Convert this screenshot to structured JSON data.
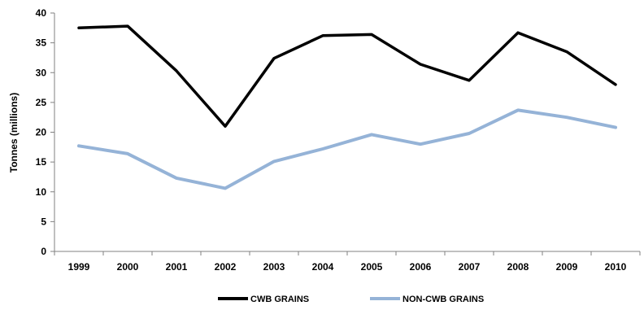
{
  "chart_data": {
    "type": "line",
    "title": "",
    "xlabel": "",
    "ylabel": "Tonnes (millions)",
    "categories": [
      "1999",
      "2000",
      "2001",
      "2002",
      "2003",
      "2004",
      "2005",
      "2006",
      "2007",
      "2008",
      "2009",
      "2010"
    ],
    "yticks": [
      "0",
      "5",
      "10",
      "15",
      "20",
      "25",
      "30",
      "35",
      "40"
    ],
    "ylim": [
      0,
      40
    ],
    "grid": false,
    "legend_position": "bottom",
    "series": [
      {
        "name": "CWB GRAINS",
        "color": "#000000",
        "values": [
          37.5,
          37.8,
          30.3,
          21.0,
          32.4,
          36.2,
          36.4,
          31.4,
          28.7,
          36.7,
          33.5,
          28.0
        ]
      },
      {
        "name": "NON-CWB GRAINS",
        "color": "#95B3D7",
        "values": [
          17.7,
          16.4,
          12.3,
          10.6,
          15.1,
          17.2,
          19.6,
          18.0,
          19.8,
          23.7,
          22.5,
          20.8
        ]
      }
    ]
  }
}
